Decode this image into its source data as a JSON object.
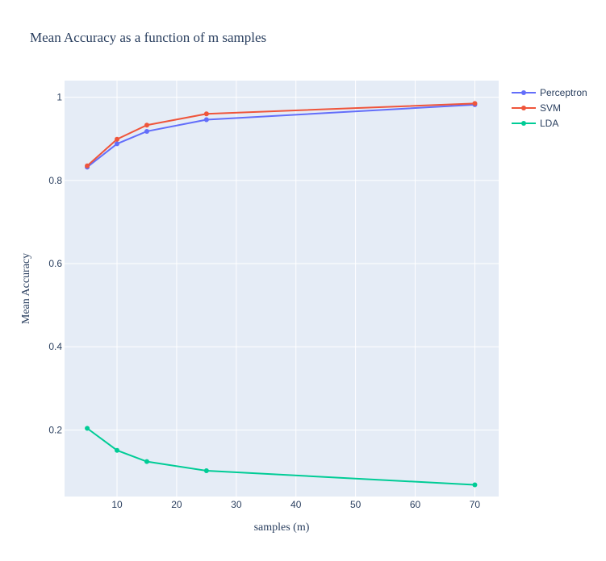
{
  "chart_data": {
    "type": "line",
    "title": "Mean Accuracy as a function of m samples",
    "xlabel": "samples (m)",
    "ylabel": "Mean Accuracy",
    "x": [
      5,
      10,
      15,
      25,
      70
    ],
    "xlim": [
      1.2,
      74
    ],
    "ylim": [
      0.04,
      1.04
    ],
    "x_ticks": [
      10,
      20,
      30,
      40,
      50,
      60,
      70
    ],
    "y_ticks": [
      0.2,
      0.4,
      0.6,
      0.8,
      1
    ],
    "x_tick_labels": [
      "10",
      "20",
      "30",
      "40",
      "50",
      "60",
      "70"
    ],
    "y_tick_labels": [
      "0.2",
      "0.4",
      "0.6",
      "0.8",
      "1"
    ],
    "grid": true,
    "legend_position": "top-right outside",
    "plot_background": "#e5ecf6",
    "series": [
      {
        "name": "Perceptron",
        "color": "#636efa",
        "values": [
          0.832,
          0.888,
          0.918,
          0.946,
          0.982
        ]
      },
      {
        "name": "SVM",
        "color": "#ef553b",
        "values": [
          0.835,
          0.899,
          0.933,
          0.96,
          0.985
        ]
      },
      {
        "name": "LDA",
        "color": "#00cc96",
        "values": [
          0.204,
          0.151,
          0.124,
          0.102,
          0.068
        ]
      }
    ]
  }
}
